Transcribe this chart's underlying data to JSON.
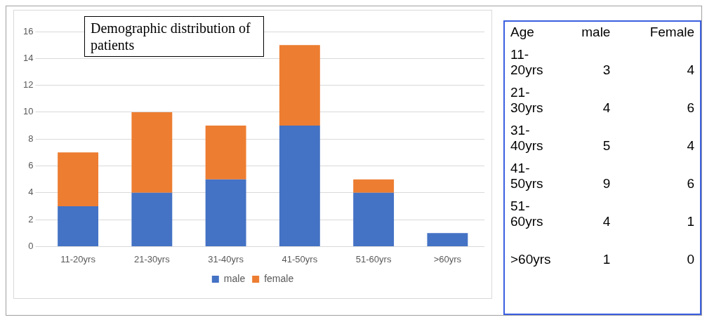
{
  "chart_data": [
    {
      "type": "bar",
      "title": "Demographic distribution of patients",
      "categories": [
        "11-20yrs",
        "21-30yrs",
        "31-40yrs",
        "41-50yrs",
        "51-60yrs",
        ">60yrs"
      ],
      "series": [
        {
          "name": "male",
          "color": "#4472c4",
          "values": [
            3,
            4,
            5,
            9,
            4,
            1
          ]
        },
        {
          "name": "female",
          "color": "#ed7d31",
          "values": [
            4,
            6,
            4,
            6,
            1,
            0
          ]
        }
      ],
      "stacked": true,
      "ylim": [
        0,
        16
      ],
      "yticks": [
        0,
        2,
        4,
        6,
        8,
        10,
        12,
        14,
        16
      ],
      "grid": "y",
      "legend": "bottom"
    },
    {
      "type": "other",
      "annotations": [
        "Age"
      ],
      "categories": [
        "11-20yrs",
        "21-30yrs",
        "31-40yrs",
        "41-50yrs",
        "51-60yrs",
        ">60yrs"
      ],
      "series": [
        {
          "name": "male",
          "values": [
            3,
            4,
            5,
            9,
            4,
            1
          ]
        },
        {
          "name": "Female",
          "values": [
            4,
            6,
            4,
            6,
            1,
            0
          ]
        }
      ],
      "data_labels": true
    }
  ]
}
